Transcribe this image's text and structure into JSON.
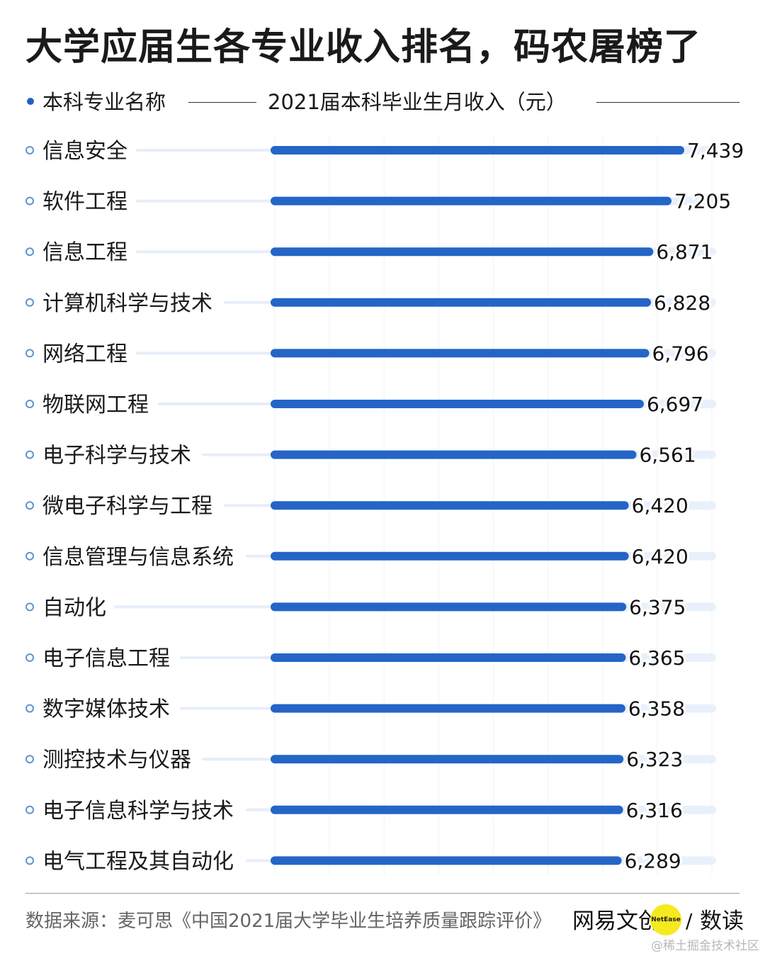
{
  "title": "大学应届生各专业收入排名，码农屠榜了",
  "header": {
    "left_label": "本科专业名称",
    "right_label": "2021届本科毕业生月收入（元）"
  },
  "chart_data": {
    "type": "bar",
    "orientation": "horizontal",
    "categories": [
      "信息安全",
      "软件工程",
      "信息工程",
      "计算机科学与技术",
      "网络工程",
      "物联网工程",
      "电子科学与技术",
      "微电子科学与工程",
      "信息管理与信息系统",
      "自动化",
      "电子信息工程",
      "数字媒体技术",
      "测控技术与仪器",
      "电子信息科学与技术",
      "电气工程及其自动化"
    ],
    "values": [
      7439,
      7205,
      6871,
      6828,
      6796,
      6697,
      6561,
      6420,
      6420,
      6375,
      6365,
      6358,
      6323,
      6316,
      6289
    ],
    "value_labels": [
      "7,439",
      "7,205",
      "6,871",
      "6,828",
      "6,796",
      "6,697",
      "6,561",
      "6,420",
      "6,420",
      "6,375",
      "6,365",
      "6,358",
      "6,323",
      "6,316",
      "6,289"
    ],
    "bar_color": "#2465c7",
    "track_color": "#e8f1fb",
    "grid": true
  },
  "footer": {
    "source": "数据来源：麦可思《中国2021届大学毕业生培养质量跟踪评价》",
    "brand": "网易文创",
    "badge": "NetEase",
    "slash": "/",
    "brand2": "数读",
    "watermark": "@稀土掘金技术社区"
  }
}
